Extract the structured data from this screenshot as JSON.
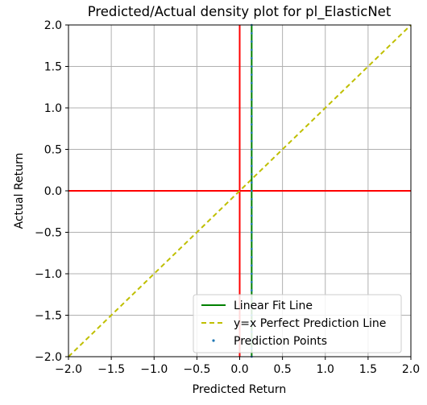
{
  "chart_data": {
    "type": "scatter",
    "title": "Predicted/Actual density plot for pl_ElasticNet",
    "xlabel": "Predicted Return",
    "ylabel": "Actual Return",
    "xlim": [
      -2.0,
      2.0
    ],
    "ylim": [
      -2.0,
      2.0
    ],
    "xticks": [
      "−2.0",
      "−1.5",
      "−1.0",
      "−0.5",
      "0.0",
      "0.5",
      "1.0",
      "1.5",
      "2.0"
    ],
    "yticks": [
      "−2.0",
      "−1.5",
      "−1.0",
      "−0.5",
      "0.0",
      "0.5",
      "1.0",
      "1.5",
      "2.0"
    ],
    "xtick_values": [
      -2.0,
      -1.5,
      -1.0,
      -0.5,
      0.0,
      0.5,
      1.0,
      1.5,
      2.0
    ],
    "ytick_values": [
      -2.0,
      -1.5,
      -1.0,
      -0.5,
      0.0,
      0.5,
      1.0,
      1.5,
      2.0
    ],
    "grid": true,
    "legend_position": "bottom-right",
    "reference_lines": {
      "vertical_x": 0.0,
      "horizontal_y": 0.0,
      "color": "#ff0000"
    },
    "series": [
      {
        "name": "Linear Fit Line",
        "kind": "line",
        "x": [
          0.14,
          0.14
        ],
        "y": [
          -2.0,
          2.0
        ],
        "color": "#008000"
      },
      {
        "name": "y=x Perfect Prediction Line",
        "kind": "dashed",
        "x": [
          -2.0,
          2.0
        ],
        "y": [
          -2.0,
          2.0
        ],
        "color": "#bfbf00"
      },
      {
        "name": "Prediction Points",
        "kind": "scatter",
        "color": "#1f77b4",
        "x": [
          0.14,
          0.14,
          0.14,
          0.14,
          0.14,
          0.14,
          0.14,
          0.14,
          0.14,
          0.14,
          0.14,
          0.14,
          0.14,
          0.14,
          0.14,
          0.14,
          0.14,
          0.14,
          0.14,
          0.14,
          0.14,
          0.14,
          0.14,
          0.14,
          0.14,
          0.14,
          0.14,
          0.14,
          0.14,
          0.14,
          0.14,
          0.14,
          0.14,
          0.14,
          0.14,
          0.14,
          0.14,
          0.14,
          0.14,
          0.14,
          0.14
        ],
        "y": [
          -1.9,
          -1.8,
          -1.7,
          -1.6,
          -1.5,
          -1.4,
          -1.3,
          -1.2,
          -1.1,
          -1.0,
          -0.9,
          -0.8,
          -0.7,
          -0.6,
          -0.5,
          -0.4,
          -0.3,
          -0.2,
          -0.1,
          0.0,
          0.1,
          0.2,
          0.3,
          0.4,
          0.5,
          0.6,
          0.7,
          0.8,
          0.9,
          1.0,
          1.1,
          1.2,
          1.3,
          1.4,
          1.5,
          1.6,
          1.7,
          1.8,
          1.9,
          2.0,
          -2.0
        ]
      }
    ]
  }
}
